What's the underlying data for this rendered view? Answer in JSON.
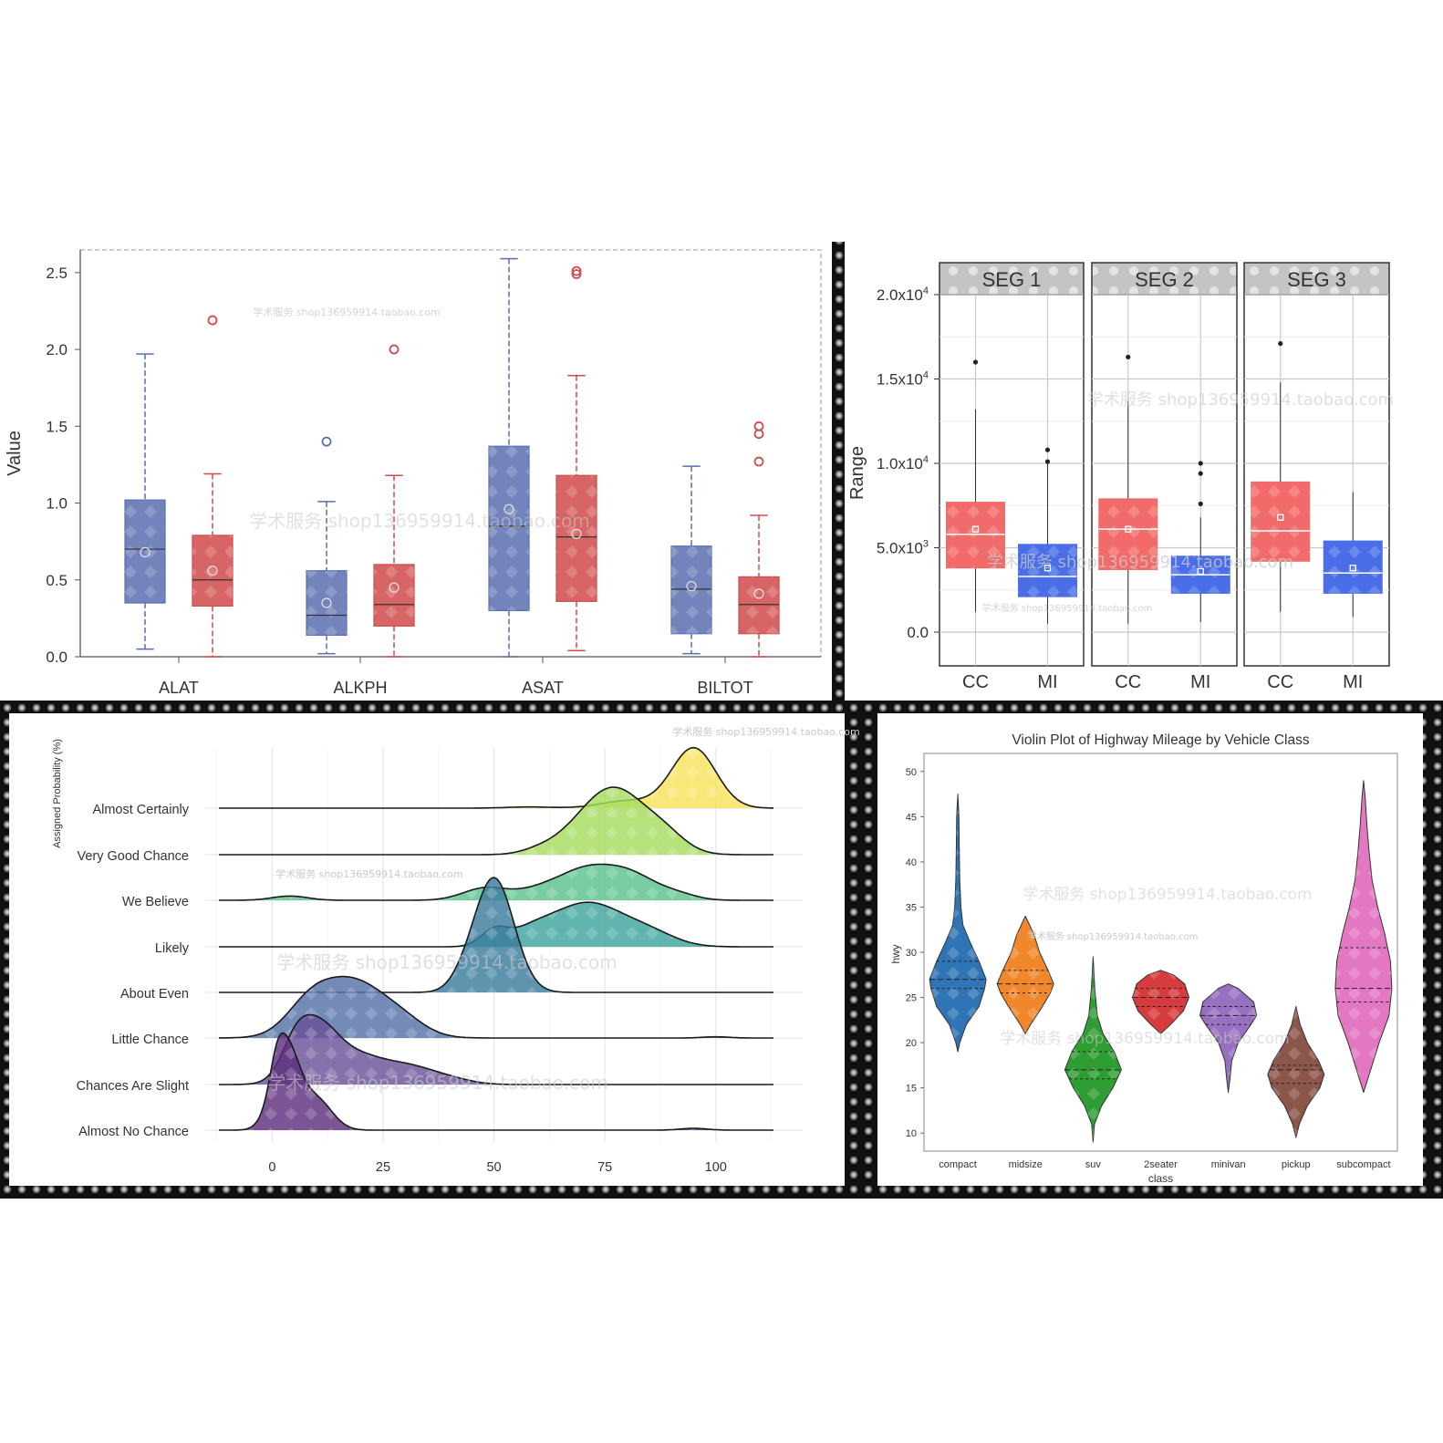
{
  "watermarks": {
    "long": "学术服务 shop136959914.taobao.com",
    "shop": "shop136959914.taobao.com"
  },
  "chart_data": [
    {
      "type": "box",
      "id": "liver-boxplot",
      "ylabel": "Value",
      "ylim": [
        0,
        2.6
      ],
      "yticks": [
        "0.0",
        "0.5",
        "1.0",
        "1.5",
        "2.0",
        "2.5"
      ],
      "categories": [
        "ALAT",
        "ALKPH",
        "ASAT",
        "BILTOT"
      ],
      "colors": [
        "#5a6fb0",
        "#d04a4a"
      ],
      "series": [
        {
          "boxes": [
            {
              "min": 0.05,
              "q1": 0.35,
              "median": 0.7,
              "q3": 1.02,
              "max": 1.97,
              "mean": 0.68,
              "outliers": []
            },
            {
              "min": 0.02,
              "q1": 0.14,
              "median": 0.27,
              "q3": 0.56,
              "max": 1.01,
              "mean": 0.35,
              "outliers": [
                1.4
              ]
            },
            {
              "min": 0.0,
              "q1": 0.3,
              "median": 0.85,
              "q3": 1.37,
              "max": 2.59,
              "mean": 0.96,
              "outliers": []
            },
            {
              "min": 0.02,
              "q1": 0.15,
              "median": 0.44,
              "q3": 0.72,
              "max": 1.24,
              "mean": 0.46,
              "outliers": []
            }
          ]
        },
        {
          "boxes": [
            {
              "min": 0.0,
              "q1": 0.33,
              "median": 0.5,
              "q3": 0.79,
              "max": 1.19,
              "mean": 0.56,
              "outliers": [
                2.19
              ]
            },
            {
              "min": 0.0,
              "q1": 0.2,
              "median": 0.34,
              "q3": 0.6,
              "max": 1.18,
              "mean": 0.45,
              "outliers": [
                2.0
              ]
            },
            {
              "min": 0.04,
              "q1": 0.36,
              "median": 0.78,
              "q3": 1.18,
              "max": 1.83,
              "mean": 0.8,
              "outliers": [
                2.49,
                2.51
              ]
            },
            {
              "min": 0.0,
              "q1": 0.15,
              "median": 0.34,
              "q3": 0.52,
              "max": 0.92,
              "mean": 0.41,
              "outliers": [
                1.27,
                1.45,
                1.5
              ]
            }
          ]
        }
      ]
    },
    {
      "type": "box",
      "id": "segment-boxplot",
      "ylabel": "Range",
      "ylim": [
        -2000,
        20000
      ],
      "yticks": [
        {
          "value": 0,
          "label": "0.0"
        },
        {
          "value": 5000,
          "label": "5.0x10",
          "exp": "3"
        },
        {
          "value": 10000,
          "label": "1.0x10",
          "exp": "4"
        },
        {
          "value": 15000,
          "label": "1.5x10",
          "exp": "4"
        },
        {
          "value": 20000,
          "label": "2.0x10",
          "exp": "4"
        }
      ],
      "panels": [
        "SEG 1",
        "SEG 2",
        "SEG 3"
      ],
      "categories": [
        "CC",
        "MI"
      ],
      "colors": [
        "#f26b6b",
        "#4a6ee8"
      ],
      "boxes": [
        [
          {
            "min": 1200,
            "q1": 3800,
            "median": 5800,
            "q3": 7700,
            "max": 13200,
            "mean": 6100,
            "outliers": [
              16000
            ]
          },
          {
            "min": 500,
            "q1": 2100,
            "median": 3300,
            "q3": 5200,
            "max": 10000,
            "mean": 3800,
            "outliers": [
              10100,
              10800
            ]
          }
        ],
        [
          {
            "min": 500,
            "q1": 3700,
            "median": 6100,
            "q3": 7900,
            "max": 13700,
            "mean": 6100,
            "outliers": [
              16300
            ]
          },
          {
            "min": 600,
            "q1": 2300,
            "median": 3400,
            "q3": 4500,
            "max": 6800,
            "mean": 3600,
            "outliers": [
              7600,
              9400,
              10000
            ]
          }
        ],
        [
          {
            "min": 1200,
            "q1": 4200,
            "median": 6000,
            "q3": 8900,
            "max": 14800,
            "mean": 6800,
            "outliers": [
              17100
            ]
          },
          {
            "min": 900,
            "q1": 2300,
            "median": 3500,
            "q3": 5400,
            "max": 8300,
            "mean": 3800,
            "outliers": []
          }
        ]
      ]
    },
    {
      "type": "ridgeline",
      "id": "probability-ridgeline",
      "ylabel": "Assigned Probability (%)",
      "xlim": [
        -12,
        113
      ],
      "xticks": [
        0,
        25,
        50,
        75,
        100
      ],
      "series": [
        {
          "name": "Almost Certainly",
          "color": "#f7e35b",
          "peaks": [
            [
              95,
              5,
              1.0
            ],
            [
              80,
              6,
              0.12
            ],
            [
              58,
              5,
              0.02
            ]
          ]
        },
        {
          "name": "Very Good Chance",
          "color": "#a6dc5f",
          "peaks": [
            [
              78,
              6,
              0.9
            ],
            [
              70,
              6,
              0.4
            ],
            [
              88,
              5,
              0.35
            ],
            [
              60,
              4,
              0.06
            ]
          ]
        },
        {
          "name": "We Believe",
          "color": "#5cc28e",
          "peaks": [
            [
              48,
              5,
              0.2
            ],
            [
              62,
              6,
              0.22
            ],
            [
              79,
              7,
              0.5
            ],
            [
              70,
              5,
              0.25
            ],
            [
              4,
              4,
              0.07
            ],
            [
              92,
              4,
              0.06
            ]
          ]
        },
        {
          "name": "Likely",
          "color": "#3ea59c",
          "peaks": [
            [
              71,
              8,
              0.72
            ],
            [
              58,
              5,
              0.2
            ],
            [
              50,
              3,
              0.25
            ],
            [
              85,
              6,
              0.2
            ]
          ]
        },
        {
          "name": "About Even",
          "color": "#3c7c9e",
          "peaks": [
            [
              50,
              4.5,
              1.9
            ],
            [
              43,
              3,
              0.12
            ]
          ]
        },
        {
          "name": "Little Chance",
          "color": "#5672a8",
          "peaks": [
            [
              18,
              8,
              0.95
            ],
            [
              8,
              5,
              0.35
            ],
            [
              30,
              5,
              0.15
            ],
            [
              100,
              3,
              0.02
            ]
          ]
        },
        {
          "name": "Chances Are Slight",
          "color": "#6a529a",
          "peaks": [
            [
              10,
              5,
              1.0
            ],
            [
              5,
              3,
              0.35
            ],
            [
              20,
              5,
              0.35
            ],
            [
              30,
              6,
              0.3
            ],
            [
              40,
              5,
              0.08
            ]
          ]
        },
        {
          "name": "Almost No Chance",
          "color": "#5e2f7e",
          "peaks": [
            [
              3,
              3,
              1.4
            ],
            [
              10,
              3.5,
              0.5
            ],
            [
              1,
              1.5,
              0.3
            ],
            [
              95,
              3,
              0.03
            ]
          ]
        }
      ]
    },
    {
      "type": "violin",
      "id": "highway-violin",
      "title": "Violin Plot of Highway Mileage by Vehicle Class",
      "xlabel": "class",
      "ylabel": "hwy",
      "ylim": [
        8,
        52
      ],
      "yticks": [
        10,
        15,
        20,
        25,
        30,
        35,
        40,
        45,
        50
      ],
      "series": [
        {
          "name": "compact",
          "color": "#2f75b5",
          "lo": 19,
          "hi": 47.5,
          "q1": 26,
          "median": 27,
          "q3": 29,
          "profile": [
            [
              19,
              0
            ],
            [
              20,
              0.07
            ],
            [
              22,
              0.3
            ],
            [
              24,
              0.75
            ],
            [
              26,
              0.95
            ],
            [
              27,
              1.0
            ],
            [
              29,
              0.75
            ],
            [
              31,
              0.45
            ],
            [
              33,
              0.18
            ],
            [
              35,
              0.11
            ],
            [
              38,
              0.07
            ],
            [
              42,
              0.05
            ],
            [
              45,
              0.04
            ],
            [
              47.5,
              0
            ]
          ]
        },
        {
          "name": "midsize",
          "color": "#f0872a",
          "lo": 21,
          "hi": 34,
          "q1": 25.5,
          "median": 26.5,
          "q3": 28,
          "profile": [
            [
              21,
              0
            ],
            [
              22,
              0.18
            ],
            [
              24,
              0.6
            ],
            [
              25.5,
              0.88
            ],
            [
              26.5,
              1.0
            ],
            [
              28,
              0.8
            ],
            [
              30,
              0.5
            ],
            [
              32,
              0.3
            ],
            [
              34,
              0
            ]
          ]
        },
        {
          "name": "suv",
          "color": "#2e9e33",
          "lo": 9,
          "hi": 29.5,
          "q1": 16,
          "median": 17,
          "q3": 19,
          "profile": [
            [
              9,
              0
            ],
            [
              11,
              0.05
            ],
            [
              13,
              0.3
            ],
            [
              15,
              0.7
            ],
            [
              17,
              1.0
            ],
            [
              19,
              0.75
            ],
            [
              21,
              0.35
            ],
            [
              23,
              0.15
            ],
            [
              26,
              0.06
            ],
            [
              29.5,
              0
            ]
          ]
        },
        {
          "name": "2seater",
          "color": "#d63b3e",
          "lo": 21,
          "hi": 28,
          "q1": 24,
          "median": 25,
          "q3": 26,
          "profile": [
            [
              21,
              0
            ],
            [
              22,
              0.35
            ],
            [
              23.5,
              0.8
            ],
            [
              25,
              1.0
            ],
            [
              26.5,
              0.85
            ],
            [
              27.5,
              0.45
            ],
            [
              28,
              0
            ]
          ]
        },
        {
          "name": "minivan",
          "color": "#9770c0",
          "lo": 14.5,
          "hi": 26.5,
          "q1": 22,
          "median": 23,
          "q3": 24,
          "profile": [
            [
              14.5,
              0
            ],
            [
              16,
              0.06
            ],
            [
              18,
              0.12
            ],
            [
              20,
              0.35
            ],
            [
              22,
              0.8
            ],
            [
              23,
              1.0
            ],
            [
              24.5,
              0.9
            ],
            [
              26,
              0.35
            ],
            [
              26.5,
              0
            ]
          ]
        },
        {
          "name": "pickup",
          "color": "#8c564b",
          "lo": 9.5,
          "hi": 24,
          "q1": 15.5,
          "median": 17,
          "q3": 17.5,
          "profile": [
            [
              9.5,
              0
            ],
            [
              11,
              0.12
            ],
            [
              13,
              0.4
            ],
            [
              15,
              0.85
            ],
            [
              16.5,
              1.0
            ],
            [
              18,
              0.8
            ],
            [
              20,
              0.4
            ],
            [
              22,
              0.15
            ],
            [
              24,
              0
            ]
          ]
        },
        {
          "name": "subcompact",
          "color": "#e377c2",
          "lo": 14.5,
          "hi": 49,
          "q1": 24.5,
          "median": 26,
          "q3": 30.5,
          "profile": [
            [
              14.5,
              0
            ],
            [
              17,
              0.25
            ],
            [
              20,
              0.55
            ],
            [
              23,
              0.9
            ],
            [
              26,
              1.0
            ],
            [
              29,
              0.95
            ],
            [
              32,
              0.75
            ],
            [
              35,
              0.5
            ],
            [
              38,
              0.3
            ],
            [
              41,
              0.2
            ],
            [
              44,
              0.12
            ],
            [
              47,
              0.06
            ],
            [
              49,
              0
            ]
          ]
        }
      ]
    }
  ]
}
